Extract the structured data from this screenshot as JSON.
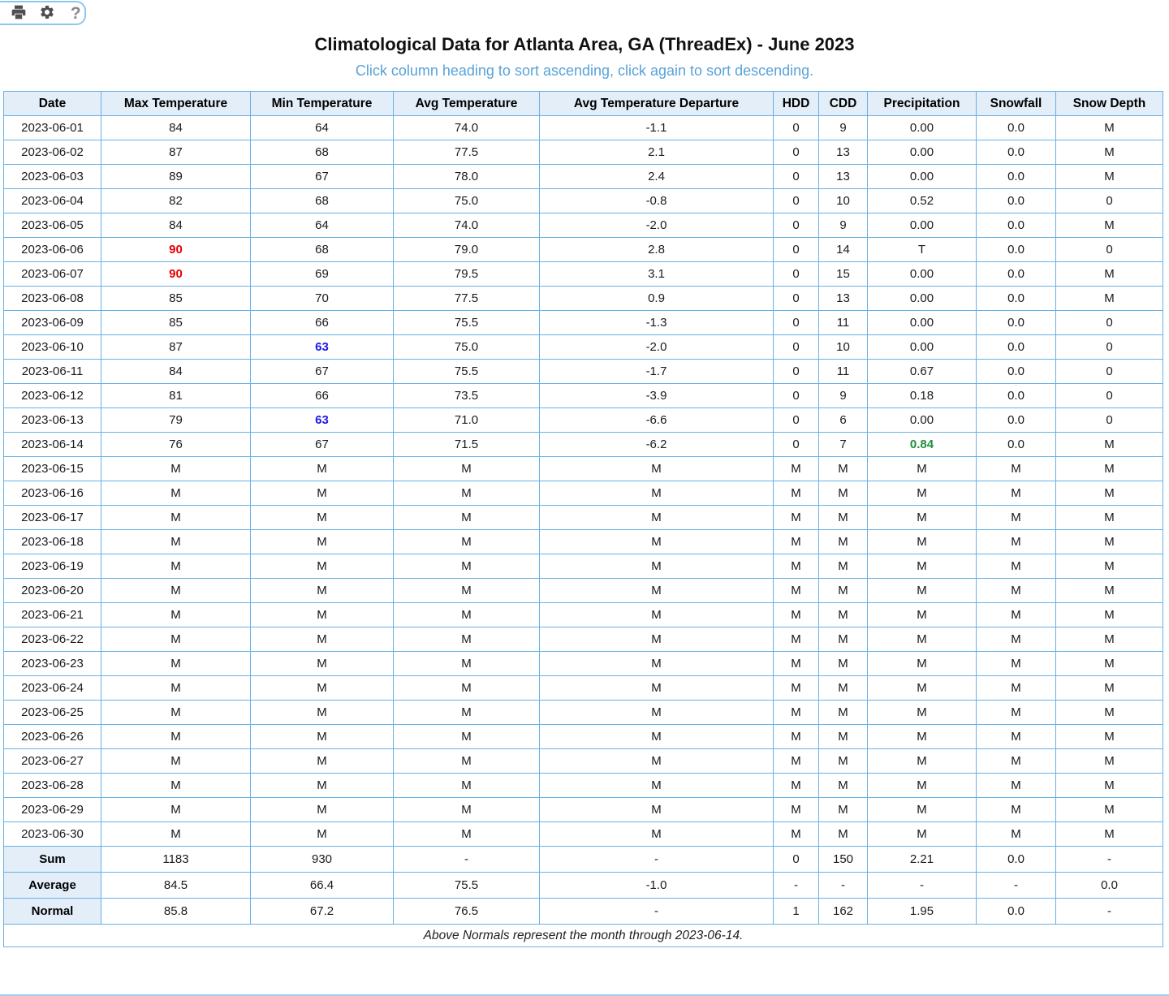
{
  "toolbar": {
    "buttons": [
      {
        "name": "print",
        "icon": "printer-icon"
      },
      {
        "name": "settings",
        "icon": "gear-icon"
      },
      {
        "name": "help",
        "icon": "question-mark-icon",
        "glyph": "?"
      }
    ]
  },
  "header": {
    "title": "Climatological Data for Atlanta Area, GA (ThreadEx) - June 2023",
    "subtitle": "Click column heading to sort ascending, click again to sort descending."
  },
  "table": {
    "columns": [
      "Date",
      "Max Temperature",
      "Min Temperature",
      "Avg Temperature",
      "Avg Temperature Departure",
      "HDD",
      "CDD",
      "Precipitation",
      "Snowfall",
      "Snow Depth"
    ],
    "rows": [
      {
        "label": "2023-06-01",
        "cells": [
          "84",
          "64",
          "74.0",
          "-1.1",
          "0",
          "9",
          "0.00",
          "0.0",
          "M"
        ]
      },
      {
        "label": "2023-06-02",
        "cells": [
          "87",
          "68",
          "77.5",
          "2.1",
          "0",
          "13",
          "0.00",
          "0.0",
          "M"
        ]
      },
      {
        "label": "2023-06-03",
        "cells": [
          "89",
          "67",
          "78.0",
          "2.4",
          "0",
          "13",
          "0.00",
          "0.0",
          "M"
        ]
      },
      {
        "label": "2023-06-04",
        "cells": [
          "82",
          "68",
          "75.0",
          "-0.8",
          "0",
          "10",
          "0.52",
          "0.0",
          "0"
        ]
      },
      {
        "label": "2023-06-05",
        "cells": [
          "84",
          "64",
          "74.0",
          "-2.0",
          "0",
          "9",
          "0.00",
          "0.0",
          "M"
        ]
      },
      {
        "label": "2023-06-06",
        "cells": [
          {
            "v": "90",
            "s": "record-high"
          },
          "68",
          "79.0",
          "2.8",
          "0",
          "14",
          "T",
          "0.0",
          "0"
        ]
      },
      {
        "label": "2023-06-07",
        "cells": [
          {
            "v": "90",
            "s": "record-high"
          },
          "69",
          "79.5",
          "3.1",
          "0",
          "15",
          "0.00",
          "0.0",
          "M"
        ]
      },
      {
        "label": "2023-06-08",
        "cells": [
          "85",
          "70",
          "77.5",
          "0.9",
          "0",
          "13",
          "0.00",
          "0.0",
          "M"
        ]
      },
      {
        "label": "2023-06-09",
        "cells": [
          "85",
          "66",
          "75.5",
          "-1.3",
          "0",
          "11",
          "0.00",
          "0.0",
          "0"
        ]
      },
      {
        "label": "2023-06-10",
        "cells": [
          "87",
          {
            "v": "63",
            "s": "record-low"
          },
          "75.0",
          "-2.0",
          "0",
          "10",
          "0.00",
          "0.0",
          "0"
        ]
      },
      {
        "label": "2023-06-11",
        "cells": [
          "84",
          "67",
          "75.5",
          "-1.7",
          "0",
          "11",
          "0.67",
          "0.0",
          "0"
        ]
      },
      {
        "label": "2023-06-12",
        "cells": [
          "81",
          "66",
          "73.5",
          "-3.9",
          "0",
          "9",
          "0.18",
          "0.0",
          "0"
        ]
      },
      {
        "label": "2023-06-13",
        "cells": [
          "79",
          {
            "v": "63",
            "s": "record-low"
          },
          "71.0",
          "-6.6",
          "0",
          "6",
          "0.00",
          "0.0",
          "0"
        ]
      },
      {
        "label": "2023-06-14",
        "cells": [
          "76",
          "67",
          "71.5",
          "-6.2",
          "0",
          "7",
          {
            "v": "0.84",
            "s": "precip-green"
          },
          "0.0",
          "M"
        ]
      },
      {
        "label": "2023-06-15",
        "cells": [
          "M",
          "M",
          "M",
          "M",
          "M",
          "M",
          "M",
          "M",
          "M"
        ]
      },
      {
        "label": "2023-06-16",
        "cells": [
          "M",
          "M",
          "M",
          "M",
          "M",
          "M",
          "M",
          "M",
          "M"
        ]
      },
      {
        "label": "2023-06-17",
        "cells": [
          "M",
          "M",
          "M",
          "M",
          "M",
          "M",
          "M",
          "M",
          "M"
        ]
      },
      {
        "label": "2023-06-18",
        "cells": [
          "M",
          "M",
          "M",
          "M",
          "M",
          "M",
          "M",
          "M",
          "M"
        ]
      },
      {
        "label": "2023-06-19",
        "cells": [
          "M",
          "M",
          "M",
          "M",
          "M",
          "M",
          "M",
          "M",
          "M"
        ]
      },
      {
        "label": "2023-06-20",
        "cells": [
          "M",
          "M",
          "M",
          "M",
          "M",
          "M",
          "M",
          "M",
          "M"
        ]
      },
      {
        "label": "2023-06-21",
        "cells": [
          "M",
          "M",
          "M",
          "M",
          "M",
          "M",
          "M",
          "M",
          "M"
        ]
      },
      {
        "label": "2023-06-22",
        "cells": [
          "M",
          "M",
          "M",
          "M",
          "M",
          "M",
          "M",
          "M",
          "M"
        ]
      },
      {
        "label": "2023-06-23",
        "cells": [
          "M",
          "M",
          "M",
          "M",
          "M",
          "M",
          "M",
          "M",
          "M"
        ]
      },
      {
        "label": "2023-06-24",
        "cells": [
          "M",
          "M",
          "M",
          "M",
          "M",
          "M",
          "M",
          "M",
          "M"
        ]
      },
      {
        "label": "2023-06-25",
        "cells": [
          "M",
          "M",
          "M",
          "M",
          "M",
          "M",
          "M",
          "M",
          "M"
        ]
      },
      {
        "label": "2023-06-26",
        "cells": [
          "M",
          "M",
          "M",
          "M",
          "M",
          "M",
          "M",
          "M",
          "M"
        ]
      },
      {
        "label": "2023-06-27",
        "cells": [
          "M",
          "M",
          "M",
          "M",
          "M",
          "M",
          "M",
          "M",
          "M"
        ]
      },
      {
        "label": "2023-06-28",
        "cells": [
          "M",
          "M",
          "M",
          "M",
          "M",
          "M",
          "M",
          "M",
          "M"
        ]
      },
      {
        "label": "2023-06-29",
        "cells": [
          "M",
          "M",
          "M",
          "M",
          "M",
          "M",
          "M",
          "M",
          "M"
        ]
      },
      {
        "label": "2023-06-30",
        "cells": [
          "M",
          "M",
          "M",
          "M",
          "M",
          "M",
          "M",
          "M",
          "M"
        ]
      }
    ],
    "summary_rows": [
      {
        "label": "Sum",
        "cells": [
          "1183",
          "930",
          "-",
          "-",
          "0",
          "150",
          "2.21",
          "0.0",
          "-"
        ]
      },
      {
        "label": "Average",
        "cells": [
          "84.5",
          "66.4",
          "75.5",
          "-1.0",
          "-",
          "-",
          "-",
          "-",
          "0.0"
        ]
      },
      {
        "label": "Normal",
        "cells": [
          "85.8",
          "67.2",
          "76.5",
          "-",
          "1",
          "162",
          "1.95",
          "0.0",
          "-"
        ]
      }
    ],
    "footnote": "Above Normals represent the month through 2023-06-14."
  },
  "legend_colors": {
    "record_high_red": "#e60000",
    "record_low_blue": "#1a1ae8",
    "precip_green": "#1e913c",
    "table_border_blue": "#66b1e7",
    "header_background": "#e3eef9",
    "subtitle_blue": "#59a2d8"
  }
}
